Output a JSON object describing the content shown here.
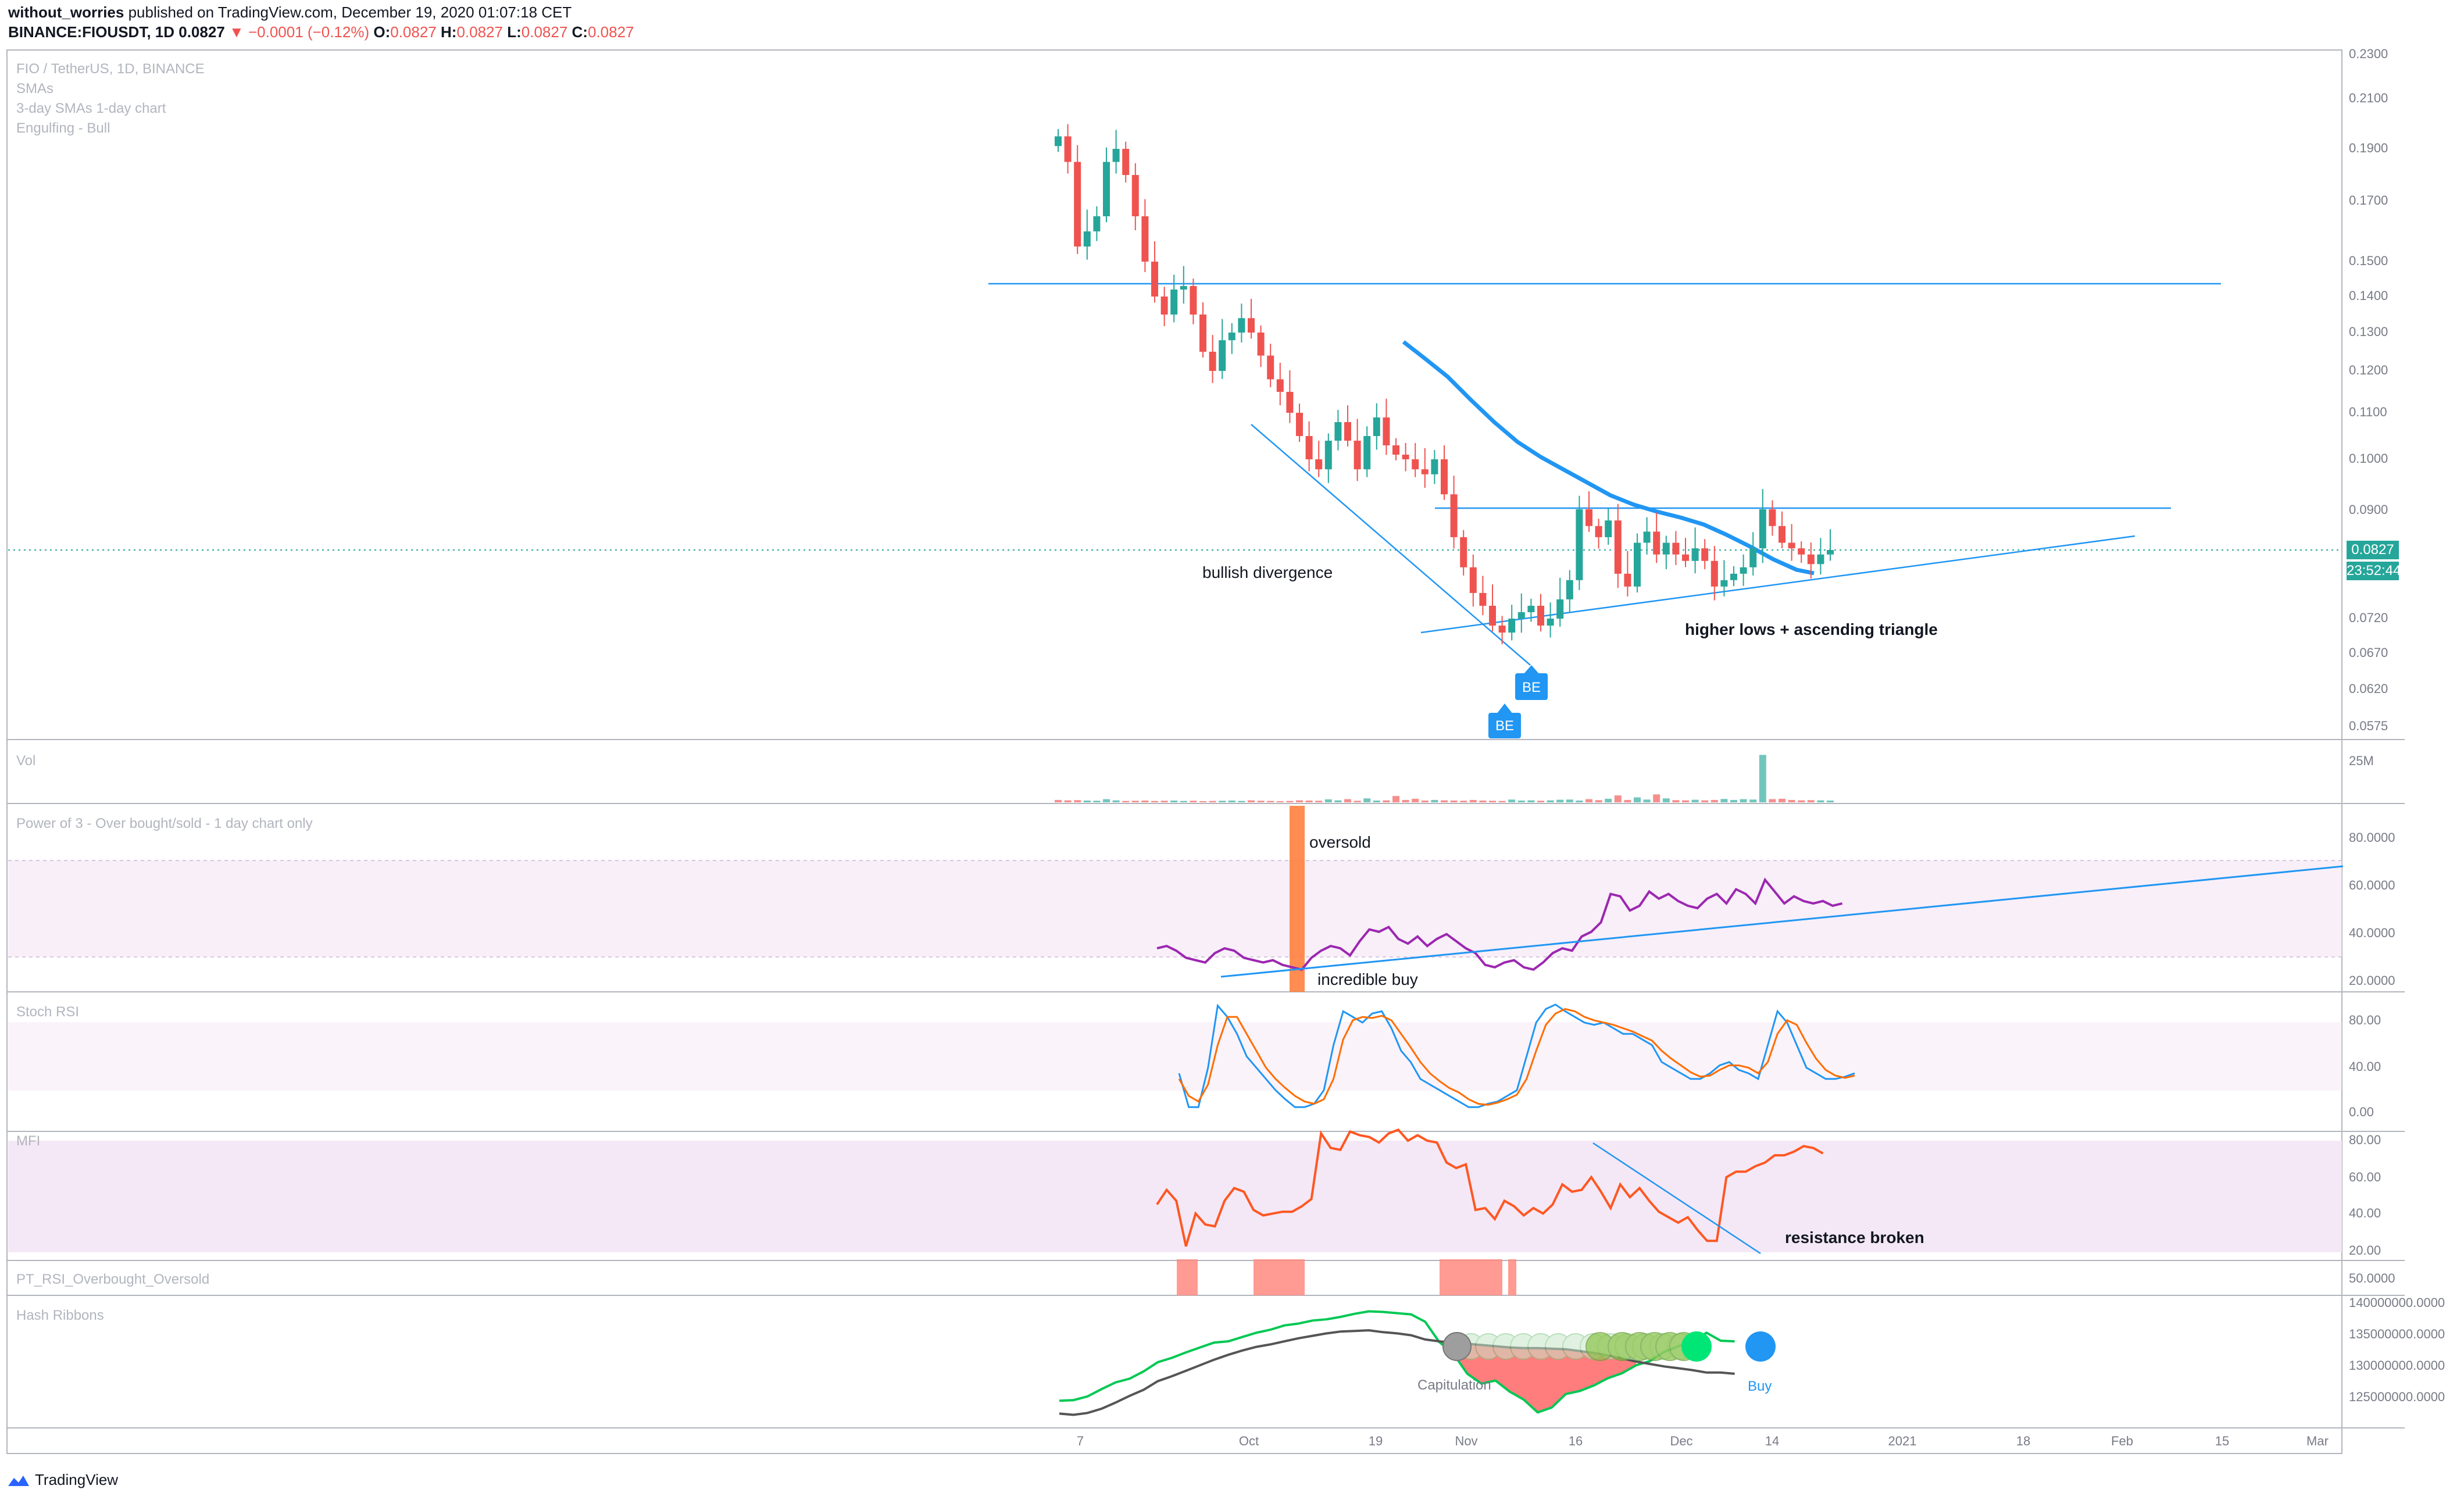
{
  "header": {
    "author": "without_worries",
    "published": "published on TradingView.com, December 19, 2020 01:07:18 CET",
    "symbol": "BINANCE:FIOUSDT, 1D",
    "last": "0.0827",
    "change": "▼ −0.0001 (−0.12%)",
    "ohlc": [
      {
        "k": "O:",
        "v": "0.0827"
      },
      {
        "k": "H:",
        "v": "0.0827"
      },
      {
        "k": "L:",
        "v": "0.0827"
      },
      {
        "k": "C:",
        "v": "0.0827"
      }
    ]
  },
  "legend": {
    "main": [
      "FIO / TetherUS, 1D, BINANCE",
      "SMAs",
      "3-day SMAs 1-day chart",
      "Engulfing - Bull"
    ],
    "vol": "Vol",
    "power": "Power of 3 - Over bought/sold - 1 day chart only",
    "stoch": "Stoch RSI",
    "mfi": "MFI",
    "pt": "PT_RSI_Overbought_Oversold",
    "hash": "Hash Ribbons"
  },
  "price_tag": "0.0827",
  "countdown": "23:52:44",
  "footer": {
    "brand": "TradingView"
  },
  "colors": {
    "up": "#26a69a",
    "down": "#ef5350",
    "line": "#2196f3",
    "rsi": "#9c27b0",
    "stochK": "#2196f3",
    "stochD": "#ff6d00",
    "mfi": "#ff5722"
  },
  "chart_data": [
    {
      "type": "candlestick",
      "title": "FIO / TetherUS, 1D, BINANCE",
      "x_ticks": [
        "7",
        "Oct",
        "19",
        "Nov",
        "16",
        "Dec",
        "14",
        "2021",
        "18",
        "Feb",
        "15",
        "Mar"
      ],
      "y_ticks": [
        "0.2300",
        "0.2100",
        "0.1900",
        "0.1700",
        "0.1500",
        "0.1400",
        "0.1300",
        "0.1200",
        "0.1100",
        "0.1000",
        "0.0900",
        "0.0720",
        "0.0670",
        "0.0620",
        "0.0575"
      ],
      "last_price": 0.0827,
      "close_series": [
        0.195,
        0.185,
        0.155,
        0.16,
        0.165,
        0.185,
        0.19,
        0.18,
        0.165,
        0.15,
        0.14,
        0.135,
        0.142,
        0.143,
        0.135,
        0.125,
        0.12,
        0.128,
        0.13,
        0.134,
        0.13,
        0.124,
        0.118,
        0.115,
        0.11,
        0.105,
        0.1,
        0.098,
        0.104,
        0.108,
        0.104,
        0.098,
        0.105,
        0.109,
        0.103,
        0.101,
        0.1,
        0.098,
        0.097,
        0.1,
        0.093,
        0.085,
        0.08,
        0.076,
        0.074,
        0.071,
        0.07,
        0.072,
        0.073,
        0.074,
        0.071,
        0.072,
        0.075,
        0.078,
        0.09,
        0.087,
        0.085,
        0.088,
        0.079,
        0.077,
        0.084,
        0.086,
        0.082,
        0.084,
        0.082,
        0.081,
        0.083,
        0.081,
        0.077,
        0.078,
        0.079,
        0.08,
        0.083,
        0.09,
        0.087,
        0.084,
        0.083,
        0.082,
        0.0805,
        0.082,
        0.0827
      ],
      "annotations": [
        "bullish divergence",
        "higher lows + ascending triangle",
        "BE",
        "BE"
      ],
      "sma_color": "#2196f3"
    },
    {
      "type": "bar",
      "title": "Vol",
      "y_ticks": [
        "25M"
      ],
      "values": [
        1.2,
        1.0,
        1.1,
        0.9,
        0.8,
        1.6,
        1.0,
        0.7,
        0.8,
        0.9,
        0.7,
        0.8,
        0.9,
        0.7,
        0.8,
        0.6,
        0.7,
        0.8,
        0.9,
        0.7,
        1.0,
        0.8,
        0.7,
        0.6,
        0.7,
        1.0,
        0.9,
        0.8,
        1.5,
        1.0,
        1.6,
        0.8,
        2.0,
        0.9,
        1.0,
        3.2,
        1.2,
        1.8,
        0.9,
        1.2,
        1.0,
        0.9,
        0.8,
        1.2,
        0.9,
        0.8,
        0.7,
        1.4,
        0.9,
        1.0,
        0.8,
        1.0,
        1.3,
        1.4,
        0.9,
        1.6,
        1.1,
        1.8,
        3.5,
        1.2,
        2.5,
        1.4,
        4.0,
        2.0,
        1.1,
        1.0,
        1.3,
        1.0,
        1.2,
        1.7,
        1.2,
        1.6,
        1.4,
        24.0,
        1.6,
        1.8,
        1.2,
        1.0,
        1.1,
        1.0,
        0.9
      ]
    },
    {
      "type": "line",
      "title": "Power of 3 - Over bought/sold - 1 day chart only",
      "y_ticks": [
        "80.0000",
        "60.0000",
        "40.0000",
        "20.0000"
      ],
      "ylim": [
        20,
        80
      ],
      "values": [
        33,
        34,
        32,
        29,
        28,
        27,
        31,
        33,
        32,
        29,
        28,
        27,
        28,
        26,
        25,
        24,
        29,
        32,
        34,
        33,
        30,
        36,
        41,
        40,
        42,
        37,
        35,
        38,
        34,
        37,
        39,
        36,
        33,
        31,
        26,
        25,
        27,
        28,
        25,
        24,
        27,
        31,
        33,
        32,
        38,
        40,
        44,
        56,
        55,
        49,
        51,
        57,
        54,
        56,
        53,
        51,
        50,
        54,
        56,
        52,
        58,
        56,
        52,
        62,
        57,
        52,
        55,
        53,
        52,
        53,
        51,
        52
      ],
      "annotations": [
        "oversold",
        "incredible buy"
      ]
    },
    {
      "type": "line",
      "title": "Stoch RSI",
      "y_ticks": [
        "80.00",
        "40.00",
        "0.00"
      ],
      "ylim": [
        0,
        100
      ],
      "series": [
        {
          "values": [
            35,
            5,
            5,
            40,
            95,
            85,
            70,
            50,
            40,
            30,
            20,
            12,
            5,
            5,
            8,
            20,
            60,
            90,
            85,
            80,
            88,
            90,
            75,
            55,
            45,
            30,
            25,
            20,
            15,
            10,
            5,
            5,
            8,
            10,
            15,
            20,
            50,
            80,
            92,
            96,
            90,
            85,
            80,
            78,
            80,
            75,
            70,
            70,
            65,
            60,
            45,
            40,
            35,
            30,
            30,
            35,
            42,
            45,
            38,
            35,
            30,
            60,
            90,
            80,
            60,
            40,
            35,
            30,
            30,
            32,
            35
          ]
        },
        {
          "values": [
            30,
            15,
            10,
            25,
            60,
            85,
            85,
            70,
            55,
            40,
            30,
            22,
            15,
            10,
            8,
            12,
            30,
            65,
            82,
            85,
            84,
            86,
            82,
            70,
            58,
            45,
            35,
            28,
            22,
            18,
            12,
            8,
            7,
            9,
            12,
            16,
            30,
            55,
            78,
            88,
            92,
            90,
            85,
            82,
            80,
            78,
            75,
            72,
            68,
            64,
            55,
            48,
            42,
            36,
            32,
            33,
            38,
            42,
            42,
            40,
            35,
            45,
            70,
            82,
            78,
            62,
            48,
            38,
            33,
            31,
            33
          ]
        }
      ]
    },
    {
      "type": "line",
      "title": "MFI",
      "y_ticks": [
        "80.00",
        "60.00",
        "40.00",
        "20.00"
      ],
      "ylim": [
        20,
        80
      ],
      "values": [
        45,
        53,
        47,
        22,
        40,
        34,
        33,
        47,
        54,
        52,
        42,
        39,
        40,
        41,
        41,
        44,
        48,
        84,
        76,
        75,
        85,
        83,
        82,
        79,
        84,
        86,
        80,
        83,
        80,
        79,
        68,
        65,
        67,
        42,
        43,
        37,
        47,
        44,
        39,
        43,
        40,
        45,
        56,
        52,
        53,
        60,
        52,
        43,
        56,
        49,
        54,
        47,
        41,
        38,
        35,
        38,
        31,
        25,
        25,
        60,
        63,
        63,
        66,
        68,
        72,
        72,
        74,
        77,
        76,
        73
      ],
      "annotations": [
        "resistance broken"
      ]
    },
    {
      "type": "bar",
      "title": "PT_RSI_Overbought_Oversold",
      "y_ticks": [
        "50.0000"
      ]
    },
    {
      "type": "line",
      "title": "Hash Ribbons",
      "y_ticks": [
        "140000000.0000",
        "135000000.0000",
        "130000000.0000",
        "125000000.0000"
      ],
      "ylim": [
        121000000,
        141000000
      ],
      "series": [
        {
          "values": [
            124.5,
            124.6,
            125.2,
            126.4,
            127.5,
            128.1,
            129.3,
            130.8,
            131.5,
            132.4,
            133.2,
            134.0,
            134.2,
            134.9,
            135.6,
            136.1,
            136.8,
            137.1,
            137.6,
            137.8,
            138.2,
            138.7,
            139.1,
            139.0,
            138.8,
            138.6,
            137.4,
            134.1,
            132.2,
            128.9,
            127.3,
            127.8,
            126.0,
            124.7,
            122.6,
            123.4,
            125.6,
            126.1,
            127.0,
            128.2,
            129.0,
            130.3,
            131.0,
            132.5,
            133.4,
            134.1,
            135.6,
            134.3,
            134.2
          ]
        },
        {
          "values": [
            122.4,
            122.2,
            122.5,
            123.2,
            124.2,
            125.3,
            126.3,
            127.7,
            128.5,
            129.4,
            130.3,
            131.2,
            132.0,
            132.7,
            133.3,
            133.7,
            134.2,
            134.7,
            135.1,
            135.5,
            135.8,
            135.9,
            136.0,
            135.7,
            135.5,
            135.2,
            134.5,
            134.2,
            134.0,
            133.8,
            133.6,
            133.4,
            133.2,
            133.1,
            133.1,
            133.0,
            132.9,
            132.6,
            132.3,
            131.9,
            131.4,
            130.9,
            130.5,
            130.1,
            129.8,
            129.5,
            129.1,
            129.1,
            128.9
          ]
        }
      ],
      "annotations": [
        "Capitulation",
        "Buy"
      ]
    }
  ]
}
